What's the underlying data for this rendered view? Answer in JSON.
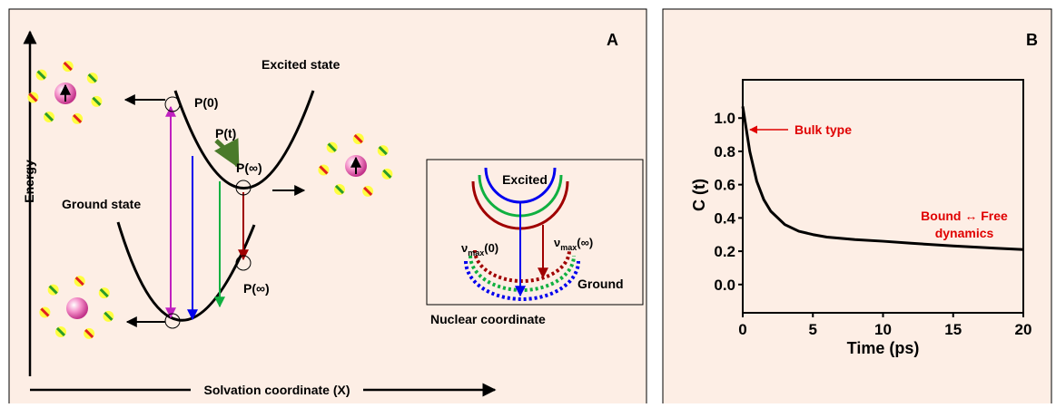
{
  "diagram": {
    "panel_label": "A",
    "excited_state": "Excited state",
    "ground_state": "Ground state",
    "energy_axis": "Energy",
    "x_axis": "Solvation coordinate (X)",
    "p0": "P(0)",
    "pt": "P(t)",
    "pinf_upper": "P(∞)",
    "pinf_lower": "P(∞)",
    "inset": {
      "excited": "Excited",
      "ground": "Ground",
      "caption": "Nuclear coordinate",
      "nu0": {
        "symbol": "ν",
        "sub": "max",
        "arg": "(0)"
      },
      "nuinf": {
        "symbol": "ν",
        "sub": "max",
        "arg": "(∞)"
      }
    }
  },
  "chart_data": {
    "type": "line",
    "panel_label": "B",
    "x_label": "Time (ps)",
    "y_label": "C (t)",
    "x": [
      0,
      0.5,
      1,
      1.5,
      2,
      3,
      4,
      5,
      6,
      8,
      10,
      12,
      15,
      18,
      20
    ],
    "series": [
      {
        "color": "#000000",
        "values": [
          1.07,
          0.8,
          0.62,
          0.51,
          0.44,
          0.36,
          0.32,
          0.3,
          0.285,
          0.27,
          0.26,
          0.248,
          0.232,
          0.218,
          0.21
        ]
      }
    ],
    "xlim": [
      0,
      20
    ],
    "xticks": [
      0,
      5,
      10,
      15,
      20
    ],
    "ylim": [
      -0.17,
      1.23
    ],
    "yticks": [
      {
        "value": 0,
        "label": "0.0"
      },
      0.2,
      0.4,
      0.6,
      {
        "value": 1,
        "label": "1.0"
      },
      0.8
    ],
    "annotations": [
      {
        "text": "Bulk type"
      },
      {
        "text": "Bound ↔ Free"
      },
      {
        "text": "dynamics"
      }
    ]
  }
}
